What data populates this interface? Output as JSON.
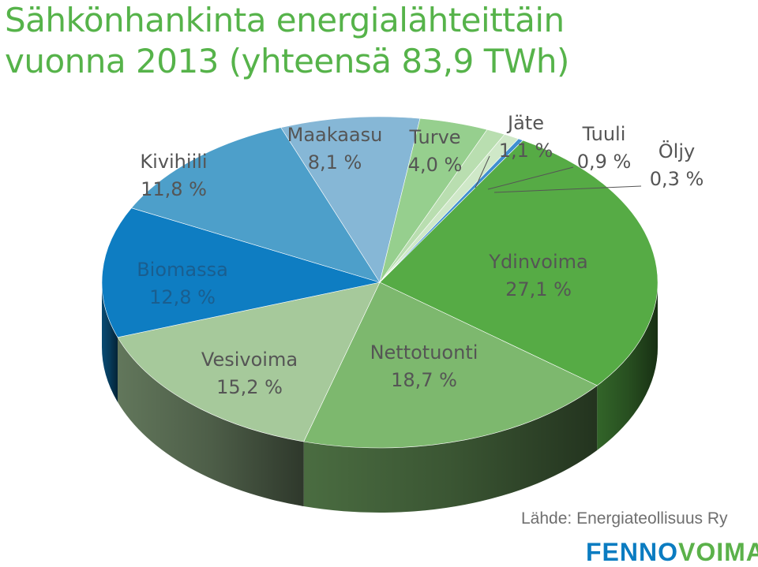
{
  "title_line1": "Sähkönhankinta energialähteittäin",
  "title_line2": "vuonna 2013 (yhteensä 83,9 TWh)",
  "source": "Lähde: Energiateollisuus Ry",
  "logo": {
    "part1": "FENNO",
    "part2": "VOIMA"
  },
  "colors": {
    "title": "#56b34a",
    "logo_blue": "#0b7cc1",
    "logo_green": "#5bb14a"
  },
  "chart_data": {
    "type": "pie",
    "style": "3d",
    "title": "Sähkönhankinta energialähteittäin vuonna 2013 (yhteensä 83,9 TWh)",
    "unit": "%",
    "total": "83,9 TWh",
    "slices": [
      {
        "name": "Ydinvoima",
        "value": 27.1,
        "label": "27,1 %",
        "color": "#56ab45"
      },
      {
        "name": "Nettotuonti",
        "value": 18.7,
        "label": "18,7 %",
        "color": "#7db86e"
      },
      {
        "name": "Vesivoima",
        "value": 15.2,
        "label": "15,2 %",
        "color": "#a6c99b"
      },
      {
        "name": "Biomassa",
        "value": 12.8,
        "label": "12,8 %",
        "color": "#0e7dc2"
      },
      {
        "name": "Kivihiili",
        "value": 11.8,
        "label": "11,8 %",
        "color": "#4d9fca"
      },
      {
        "name": "Maakaasu",
        "value": 8.1,
        "label": "8,1 %",
        "color": "#86b7d6"
      },
      {
        "name": "Turve",
        "value": 4.0,
        "label": "4,0 %",
        "color": "#96cf8e"
      },
      {
        "name": "Jäte",
        "value": 1.1,
        "label": "1,1 %",
        "color": "#b9deb0"
      },
      {
        "name": "Tuuli",
        "value": 0.9,
        "label": "0,9 %",
        "color": "#cfe8c8"
      },
      {
        "name": "Öljy",
        "value": 0.3,
        "label": "0,3 %",
        "color": "#3f8fd0"
      }
    ]
  }
}
